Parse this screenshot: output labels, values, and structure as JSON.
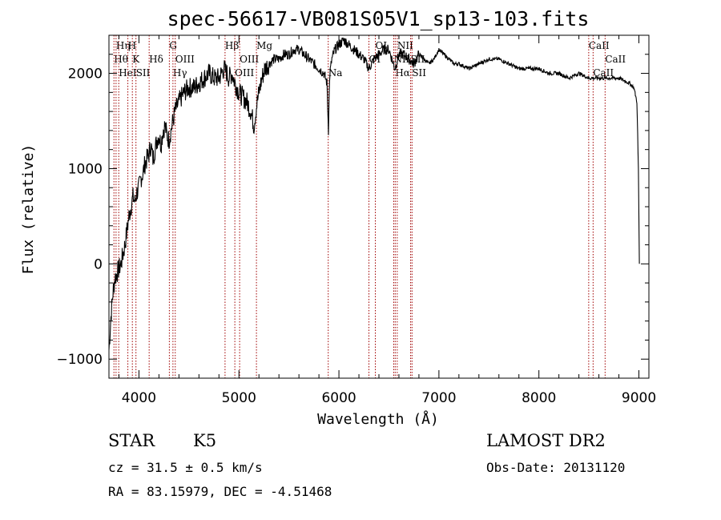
{
  "chart_data": {
    "type": "line",
    "title": "spec-56617-VB081S05V1_sp13-103.fits",
    "xlabel": "Wavelength (Å)",
    "ylabel": "Flux (relative)",
    "xlim": [
      3700,
      9100
    ],
    "ylim": [
      -1200,
      2400
    ],
    "xticks": [
      4000,
      5000,
      6000,
      7000,
      8000,
      9000
    ],
    "yticks": [
      -1000,
      0,
      1000,
      2000
    ],
    "grid": false,
    "series": [
      {
        "x": [
          3700,
          3720,
          3740,
          3760,
          3780,
          3800,
          3820,
          3840,
          3860,
          3880,
          3900,
          3920,
          3940,
          3960,
          3980,
          4000,
          4020,
          4040,
          4060,
          4080,
          4100,
          4120,
          4140,
          4160,
          4180,
          4200,
          4220,
          4240,
          4260,
          4280,
          4300,
          4320,
          4340,
          4360,
          4380,
          4400,
          4450,
          4500,
          4550,
          4600,
          4650,
          4700,
          4750,
          4800,
          4850,
          4880,
          4900,
          4930,
          4960,
          5000,
          5040,
          5080,
          5120,
          5150,
          5175,
          5200,
          5230,
          5260,
          5300,
          5350,
          5400,
          5450,
          5500,
          5550,
          5600,
          5650,
          5700,
          5750,
          5800,
          5850,
          5880,
          5895,
          5900,
          5910,
          5930,
          5960,
          6000,
          6050,
          6100,
          6150,
          6200,
          6250,
          6300,
          6350,
          6400,
          6450,
          6500,
          6560,
          6600,
          6650,
          6700,
          6750,
          6800,
          6850,
          6900,
          6950,
          7000,
          7050,
          7100,
          7150,
          7200,
          7300,
          7400,
          7500,
          7600,
          7700,
          7800,
          7900,
          8000,
          8100,
          8200,
          8300,
          8400,
          8500,
          8600,
          8700,
          8800,
          8900,
          8950,
          8980,
          8995,
          9005
        ],
        "values": [
          -900,
          -550,
          -300,
          -150,
          -100,
          -50,
          0,
          100,
          200,
          350,
          500,
          600,
          700,
          650,
          750,
          800,
          900,
          950,
          1050,
          1100,
          1150,
          1250,
          1100,
          1200,
          1300,
          1350,
          1250,
          1400,
          1450,
          1350,
          1300,
          1400,
          1500,
          1600,
          1650,
          1700,
          1800,
          1850,
          1850,
          1900,
          1950,
          2000,
          1950,
          1950,
          2050,
          2000,
          1950,
          2000,
          1900,
          1800,
          1750,
          1700,
          1600,
          1450,
          1650,
          1800,
          1950,
          2050,
          2100,
          2150,
          2150,
          2200,
          2200,
          2250,
          2250,
          2200,
          2150,
          2100,
          2050,
          2000,
          1900,
          1400,
          1700,
          2000,
          2150,
          2250,
          2300,
          2350,
          2300,
          2250,
          2200,
          2150,
          2050,
          2150,
          2200,
          2250,
          2250,
          2050,
          2200,
          2200,
          2150,
          2100,
          2200,
          2150,
          2100,
          2150,
          2250,
          2200,
          2150,
          2100,
          2100,
          2050,
          2100,
          2150,
          2150,
          2100,
          2050,
          2050,
          2050,
          2000,
          2000,
          1950,
          2000,
          1950,
          1950,
          1950,
          1950,
          1900,
          1850,
          1700,
          1000,
          0
        ]
      }
    ],
    "lines": [
      {
        "wave": 3750,
        "label": "Hθ",
        "row": 2
      },
      {
        "wave": 3771,
        "label": "Hη",
        "row": 1
      },
      {
        "wave": 3798,
        "label": "HeI",
        "row": 3
      },
      {
        "wave": 3889,
        "label": "H",
        "row": 1
      },
      {
        "wave": 3934,
        "label": "K",
        "row": 2
      },
      {
        "wave": 3970,
        "label": "SII",
        "row": 3
      },
      {
        "wave": 4102,
        "label": "Hδ",
        "row": 2
      },
      {
        "wave": 4304,
        "label": "G",
        "row": 1
      },
      {
        "wave": 4340,
        "label": "Hγ",
        "row": 3
      },
      {
        "wave": 4363,
        "label": "OIII",
        "row": 2
      },
      {
        "wave": 4861,
        "label": "Hβ",
        "row": 1
      },
      {
        "wave": 4959,
        "label": "OIII",
        "row": 3
      },
      {
        "wave": 5007,
        "label": "OIII",
        "row": 2
      },
      {
        "wave": 5175,
        "label": "Mg",
        "row": 1
      },
      {
        "wave": 5893,
        "label": "Na",
        "row": 3
      },
      {
        "wave": 6300,
        "label": "OI",
        "row": 2
      },
      {
        "wave": 6364,
        "label": "OI",
        "row": 1
      },
      {
        "wave": 6548,
        "label": "NII",
        "row": 2
      },
      {
        "wave": 6563,
        "label": "Hα",
        "row": 3
      },
      {
        "wave": 6583,
        "label": "NII",
        "row": 1
      },
      {
        "wave": 6717,
        "label": "SII",
        "row": 2
      },
      {
        "wave": 6731,
        "label": "SII",
        "row": 3
      },
      {
        "wave": 8498,
        "label": "CaII",
        "row": 1
      },
      {
        "wave": 8542,
        "label": "CaII",
        "row": 3
      },
      {
        "wave": 8662,
        "label": "CaII",
        "row": 2
      }
    ]
  },
  "info": {
    "class": "STAR",
    "subclass": "K5",
    "survey": "LAMOST DR2",
    "cz": "cz = 31.5 ± 0.5 km/s",
    "obsdate": "Obs-Date: 20131120",
    "radec": "RA =  83.15979, DEC =  -4.51468"
  },
  "colors": {
    "spectrum": "#000000",
    "line_markers": "#a00000",
    "axes": "#000000"
  }
}
